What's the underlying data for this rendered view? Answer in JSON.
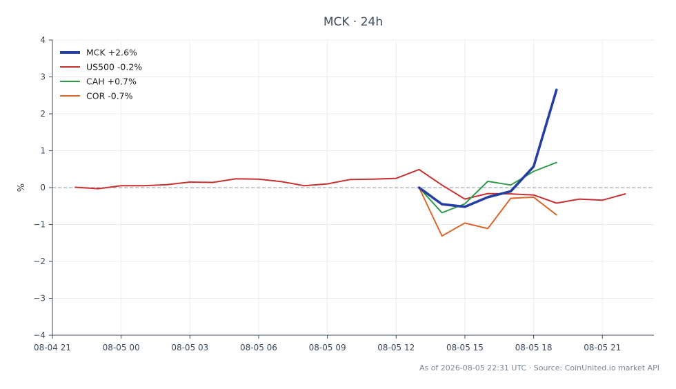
{
  "chart_data": {
    "type": "line",
    "title": "MCK · 24h",
    "xlabel": "",
    "ylabel": "%",
    "ylim": [
      -4,
      4
    ],
    "xlim": [
      "2026-08-04 21:00",
      "2026-08-05 23:15"
    ],
    "yticks": [
      -4,
      -3,
      -2,
      -1,
      0,
      1,
      2,
      3,
      4
    ],
    "ytick_labels": [
      "−4",
      "−3",
      "−2",
      "−1",
      "0",
      "1",
      "2",
      "3",
      "4"
    ],
    "xticks": [
      "2026-08-04 21:00",
      "2026-08-05 00:00",
      "2026-08-05 03:00",
      "2026-08-05 06:00",
      "2026-08-05 09:00",
      "2026-08-05 12:00",
      "2026-08-05 15:00",
      "2026-08-05 18:00",
      "2026-08-05 21:00"
    ],
    "xtick_labels": [
      "08-04 21",
      "08-05 00",
      "08-05 03",
      "08-05 06",
      "08-05 09",
      "08-05 12",
      "08-05 15",
      "08-05 18",
      "08-05 21"
    ],
    "grid": true,
    "zero_line": true,
    "legend_position": "top-left",
    "series": [
      {
        "name": "MCK +2.6%",
        "color": "#2340a0",
        "x": [
          "2026-08-05 13:00",
          "2026-08-05 14:00",
          "2026-08-05 15:00",
          "2026-08-05 16:00",
          "2026-08-05 17:00",
          "2026-08-05 18:00",
          "2026-08-05 19:00"
        ],
        "y": [
          0.0,
          -0.45,
          -0.52,
          -0.26,
          -0.1,
          0.57,
          2.65
        ]
      },
      {
        "name": "US500 -0.2%",
        "color": "#c8302f",
        "x": [
          "2026-08-04 22:00",
          "2026-08-04 23:00",
          "2026-08-05 00:00",
          "2026-08-05 01:00",
          "2026-08-05 02:00",
          "2026-08-05 03:00",
          "2026-08-05 04:00",
          "2026-08-05 05:00",
          "2026-08-05 06:00",
          "2026-08-05 07:00",
          "2026-08-05 08:00",
          "2026-08-05 09:00",
          "2026-08-05 10:00",
          "2026-08-05 11:00",
          "2026-08-05 12:00",
          "2026-08-05 13:00",
          "2026-08-05 14:00",
          "2026-08-05 15:00",
          "2026-08-05 16:00",
          "2026-08-05 17:00",
          "2026-08-05 18:00",
          "2026-08-05 19:00",
          "2026-08-05 20:00",
          "2026-08-05 21:00",
          "2026-08-05 22:00"
        ],
        "y": [
          0.01,
          -0.03,
          0.05,
          0.05,
          0.08,
          0.15,
          0.14,
          0.24,
          0.23,
          0.16,
          0.05,
          0.1,
          0.22,
          0.23,
          0.25,
          0.49,
          0.07,
          -0.31,
          -0.16,
          -0.17,
          -0.2,
          -0.42,
          -0.31,
          -0.34,
          -0.17
        ]
      },
      {
        "name": "CAH +0.7%",
        "color": "#2e9a48",
        "x": [
          "2026-08-05 13:00",
          "2026-08-05 14:00",
          "2026-08-05 15:00",
          "2026-08-05 16:00",
          "2026-08-05 17:00",
          "2026-08-05 18:00",
          "2026-08-05 19:00"
        ],
        "y": [
          0.0,
          -0.68,
          -0.44,
          0.17,
          0.07,
          0.44,
          0.68
        ]
      },
      {
        "name": "COR -0.7%",
        "color": "#d9662a",
        "x": [
          "2026-08-05 13:00",
          "2026-08-05 14:00",
          "2026-08-05 15:00",
          "2026-08-05 16:00",
          "2026-08-05 17:00",
          "2026-08-05 18:00",
          "2026-08-05 19:00"
        ],
        "y": [
          0.0,
          -1.31,
          -0.96,
          -1.11,
          -0.29,
          -0.26,
          -0.74
        ]
      }
    ]
  },
  "footer": "As of 2026-08-05 22:31 UTC · Source: CoinUnited.io market API"
}
